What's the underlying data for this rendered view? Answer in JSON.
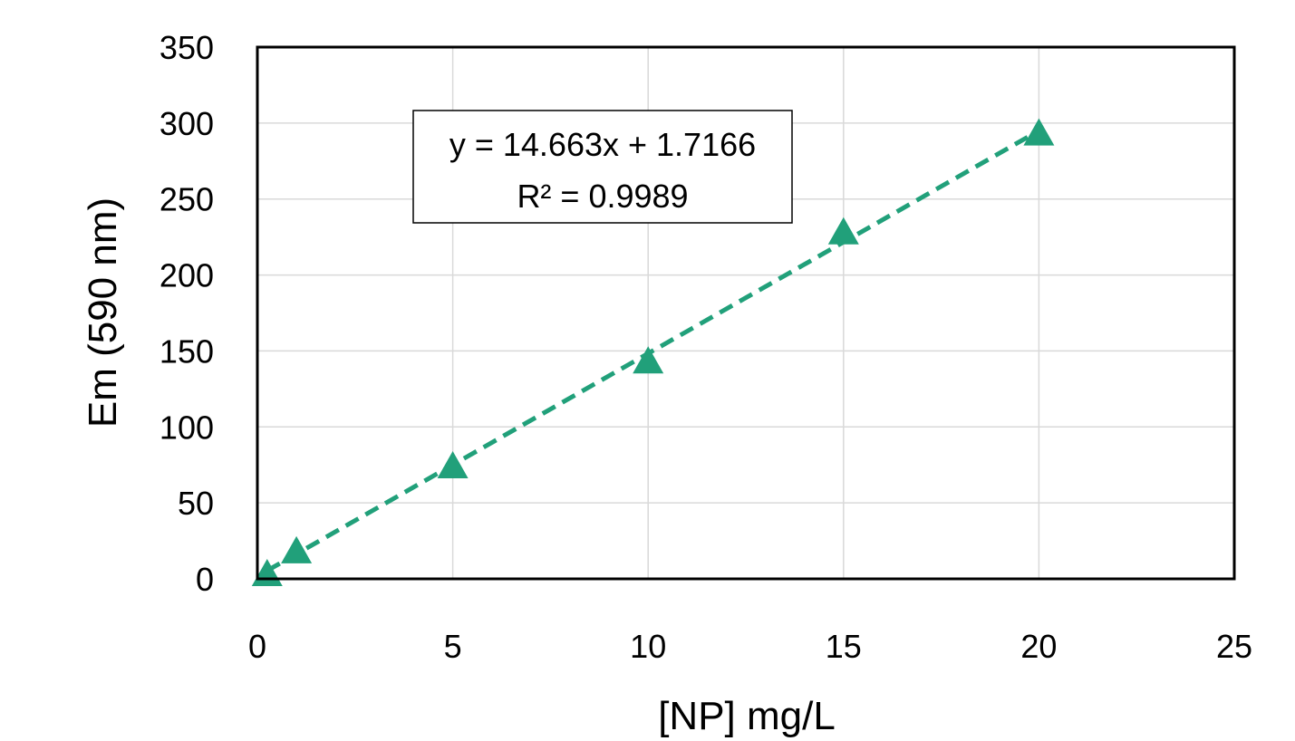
{
  "chart_data": {
    "type": "scatter",
    "xlabel": "[NP] mg/L",
    "ylabel": "Em (590 nm)",
    "xlim": [
      0,
      25
    ],
    "ylim": [
      0,
      350
    ],
    "xticks": [
      0,
      5,
      10,
      15,
      20,
      25
    ],
    "yticks": [
      0,
      50,
      100,
      150,
      200,
      250,
      300,
      350
    ],
    "grid": true,
    "marker": "triangle",
    "color": "#21a07a",
    "series": [
      {
        "x": [
          0.25,
          1,
          5,
          10,
          15,
          20
        ],
        "y": [
          2,
          17,
          73,
          142,
          227,
          292
        ]
      }
    ],
    "trendline": {
      "type": "linear",
      "style": "dashed",
      "slope": 14.663,
      "intercept": 1.7166,
      "equation": "y = 14.663x + 1.7166",
      "r_squared": "R² = 0.9989"
    }
  }
}
